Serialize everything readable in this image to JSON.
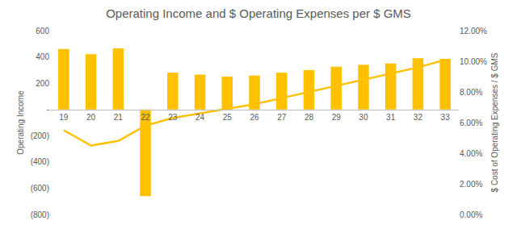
{
  "chart_data": {
    "type": "bar",
    "title": "Operating Income and $ Operating Expenses per $ GMS",
    "y_label": "Operating Income",
    "y2_label": "$ Cost of Operating Expenses / $ GMS",
    "categories": [
      "19",
      "20",
      "21",
      "22",
      "23",
      "24",
      "25",
      "26",
      "27",
      "28",
      "29",
      "30",
      "31",
      "32",
      "33"
    ],
    "series": [
      {
        "type": "bar",
        "color": "#FFC000",
        "values": [
          460,
          420,
          465,
          -660,
          280,
          265,
          250,
          258,
          280,
          300,
          325,
          340,
          350,
          390,
          385
        ]
      },
      {
        "type": "line",
        "axis": "y2",
        "color": "#FFC000",
        "line_style": "solid",
        "values": [
          5.5,
          4.5,
          4.8,
          5.8,
          6.3,
          6.6,
          6.9,
          7.2,
          7.6,
          8.0,
          8.4,
          8.8,
          9.2,
          9.6,
          10.1
        ]
      }
    ],
    "ylim": [
      -800,
      600
    ],
    "yticks": [
      {
        "value": -800,
        "label": "(800)"
      },
      {
        "value": -600,
        "label": "(600)"
      },
      {
        "value": -400,
        "label": "(400)"
      },
      {
        "value": -200,
        "label": "(200)"
      },
      {
        "value": 0,
        "label": "-"
      },
      200,
      400,
      600
    ],
    "y2lim": [
      0,
      12
    ],
    "y2ticks": [
      {
        "value": 0,
        "label": "0.00%"
      },
      {
        "value": 2,
        "label": "2.00%"
      },
      {
        "value": 4,
        "label": "4.00%"
      },
      {
        "value": 6,
        "label": "6.00%"
      },
      {
        "value": 8,
        "label": "8.00%"
      },
      {
        "value": 10,
        "label": "10.00%"
      },
      {
        "value": 12,
        "label": "12.00%"
      }
    ],
    "grid": false
  }
}
